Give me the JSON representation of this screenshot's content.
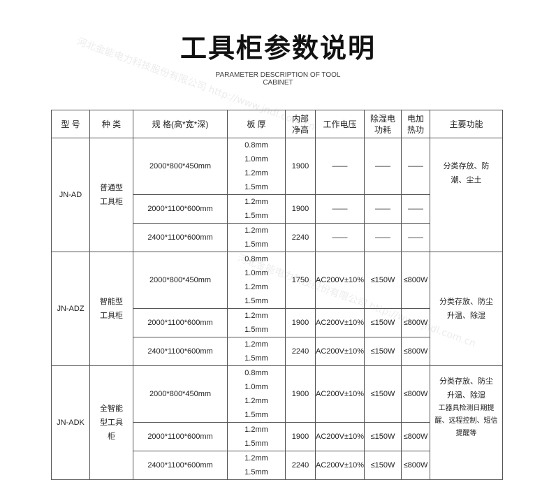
{
  "title": "工具柜参数说明",
  "subtitle_line1": "PARAMETER DESCRIPTION OF TOOL",
  "subtitle_line2": "CABINET",
  "watermark": "河北金能电力科技股份有限公司 http://www.jndl.com.cn",
  "headers": [
    "型 号",
    "种 类",
    "规 格(高*宽*深)",
    "板 厚",
    "内部净高",
    "工作电压",
    "除湿电功耗",
    "电加热功",
    "主要功能"
  ],
  "groups": [
    {
      "model": "JN-AD",
      "type": "普通型工具柜",
      "function": "分类存放、防潮、尘土",
      "rows": [
        {
          "spec": "2000*800*450mm",
          "thick": "0.8mm 1.0mm 1.2mm 1.5mm",
          "height": "1900",
          "voltage": "——",
          "dehum": "——",
          "heat": "——"
        },
        {
          "spec": "2000*1100*600mm",
          "thick": "1.2mm 1.5mm",
          "height": "1900",
          "voltage": "——",
          "dehum": "——",
          "heat": "——"
        },
        {
          "spec": "2400*1100*600mm",
          "thick": "1.2mm 1.5mm",
          "height": "2240",
          "voltage": "——",
          "dehum": "——",
          "heat": "——"
        }
      ]
    },
    {
      "model": "JN-ADZ",
      "type": "智能型工具柜",
      "function": "分类存放、防尘升温、除湿",
      "rows": [
        {
          "spec": "2000*800*450mm",
          "thick": "0.8mm 1.0mm 1.2mm 1.5mm",
          "height": "1750",
          "voltage": "AC200V±10%",
          "dehum": "≤150W",
          "heat": "≤800W"
        },
        {
          "spec": "2000*1100*600mm",
          "thick": "1.2mm 1.5mm",
          "height": "1900",
          "voltage": "AC200V±10%",
          "dehum": "≤150W",
          "heat": "≤800W"
        },
        {
          "spec": "2400*1100*600mm",
          "thick": "1.2mm 1.5mm",
          "height": "2240",
          "voltage": "AC200V±10%",
          "dehum": "≤150W",
          "heat": "≤800W"
        }
      ]
    },
    {
      "model": "JN-ADK",
      "type": "全智能型工具柜",
      "function": "分类存放、防尘升温、除湿",
      "function_extra": "工器具检测日期提醒、远程控制、短信提醒等",
      "rows": [
        {
          "spec": "2000*800*450mm",
          "thick": "0.8mm 1.0mm 1.2mm 1.5mm",
          "height": "1900",
          "voltage": "AC200V±10%",
          "dehum": "≤150W",
          "heat": "≤800W"
        },
        {
          "spec": "2000*1100*600mm",
          "thick": "1.2mm 1.5mm",
          "height": "1900",
          "voltage": "AC200V±10%",
          "dehum": "≤150W",
          "heat": "≤800W"
        },
        {
          "spec": "2400*1100*600mm",
          "thick": "1.2mm 1.5mm",
          "height": "2240",
          "voltage": "AC200V±10%",
          "dehum": "≤150W",
          "heat": "≤800W"
        }
      ]
    }
  ]
}
